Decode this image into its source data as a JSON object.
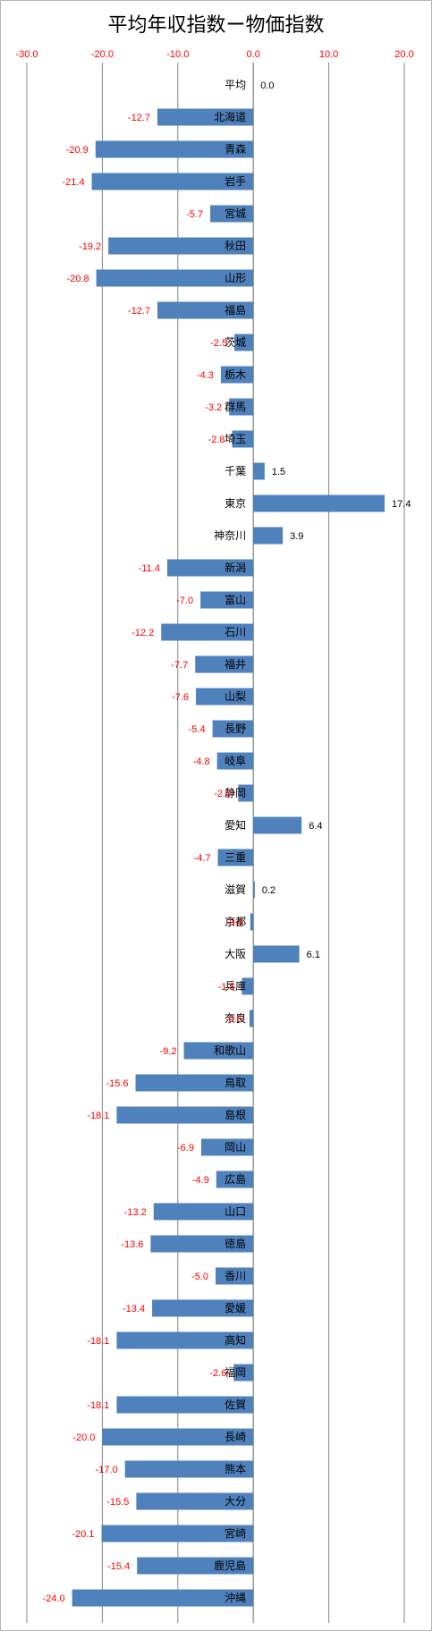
{
  "chart_data": {
    "type": "bar",
    "orientation": "horizontal",
    "title": "平均年収指数ー物価指数",
    "xlim": [
      -30.0,
      20.0
    ],
    "xticks": [
      "-30.0",
      "-20.0",
      "-10.0",
      "0.0",
      "10.0",
      "20.0"
    ],
    "grid": true,
    "bar_color": "#4f81bd",
    "categories": [
      "平均",
      "北海道",
      "青森",
      "岩手",
      "宮城",
      "秋田",
      "山形",
      "福島",
      "茨城",
      "栃木",
      "群馬",
      "埼玉",
      "千葉",
      "東京",
      "神奈川",
      "新潟",
      "富山",
      "石川",
      "福井",
      "山梨",
      "長野",
      "岐阜",
      "静岡",
      "愛知",
      "三重",
      "滋賀",
      "京都",
      "大阪",
      "兵庫",
      "奈良",
      "和歌山",
      "鳥取",
      "島根",
      "岡山",
      "広島",
      "山口",
      "徳島",
      "香川",
      "愛媛",
      "高知",
      "福岡",
      "佐賀",
      "長崎",
      "熊本",
      "大分",
      "宮崎",
      "鹿児島",
      "沖縄"
    ],
    "values": [
      0.0,
      -12.7,
      -20.9,
      -21.4,
      -5.7,
      -19.2,
      -20.8,
      -12.7,
      -2.5,
      -4.3,
      -3.2,
      -2.8,
      1.5,
      17.4,
      3.9,
      -11.4,
      -7.0,
      -12.2,
      -7.7,
      -7.6,
      -5.4,
      -4.8,
      -2.0,
      6.4,
      -4.7,
      0.2,
      -0.4,
      6.1,
      -1.5,
      -0.5,
      -9.2,
      -15.6,
      -18.1,
      -6.9,
      -4.9,
      -13.2,
      -13.6,
      -5.0,
      -13.4,
      -18.1,
      -2.6,
      -18.1,
      -20.0,
      -17.0,
      -15.5,
      -20.1,
      -15.4,
      -24.0
    ],
    "labels": [
      "0.0",
      "-12.7",
      "-20.9",
      "-21.4",
      "-5.7",
      "-19.2",
      "-20.8",
      "-12.7",
      "-2.5",
      "-4.3",
      "-3.2",
      "-2.8",
      "1.5",
      "17.4",
      "3.9",
      "-11.4",
      "-7.0",
      "-12.2",
      "-7.7",
      "-7.6",
      "-5.4",
      "-4.8",
      "-2.0",
      "6.4",
      "-4.7",
      "0.2",
      "-0.4",
      "6.1",
      "-1.5",
      "-0.5",
      "-9.2",
      "-15.6",
      "-18.1",
      "-6.9",
      "-4.9",
      "-13.2",
      "-13.6",
      "-5.0",
      "-13.4",
      "-18.1",
      "-2.6",
      "-18.1",
      "-20.0",
      "-17.0",
      "-15.5",
      "-20.1",
      "-15.4",
      "-24.0"
    ],
    "colors": {
      "negative_label": "#ff0000",
      "positive_label": "#000000",
      "tick": "#ff0000",
      "grid": "#868686"
    }
  }
}
